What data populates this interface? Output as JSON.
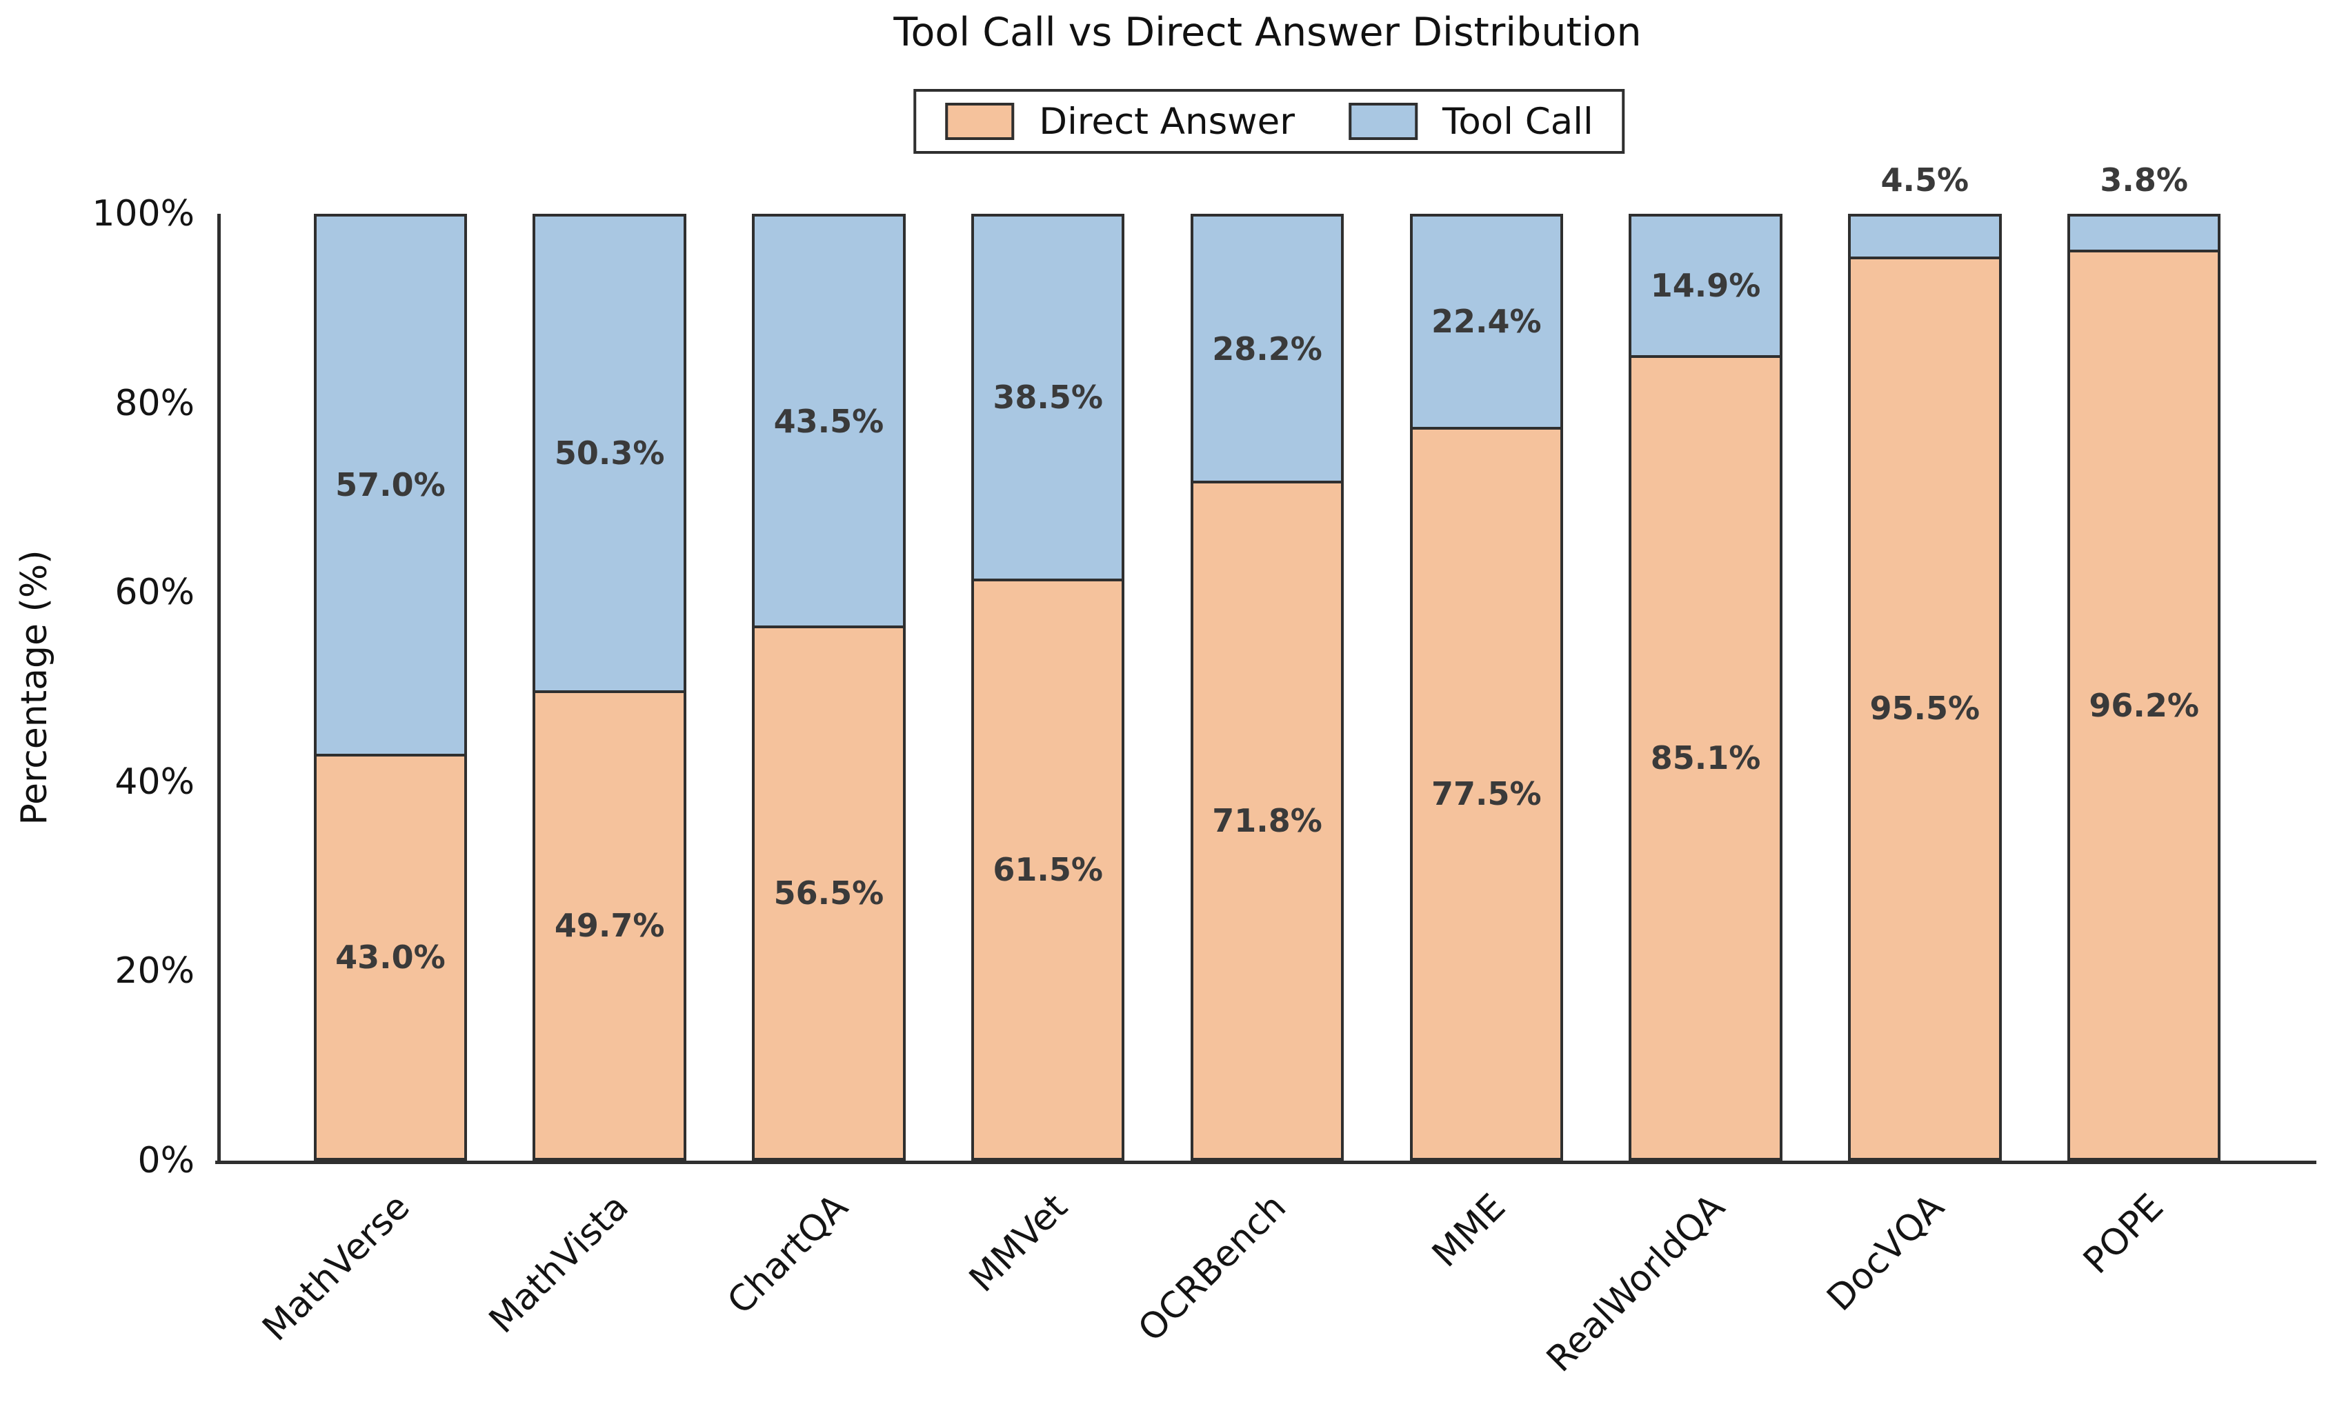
{
  "chart_data": {
    "type": "bar",
    "stacked": true,
    "title": "Tool Call vs Direct Answer Distribution",
    "ylabel": "Percentage (%)",
    "ylim": [
      0,
      100
    ],
    "grid": false,
    "yticks": [
      {
        "value": 0,
        "label": "0%"
      },
      {
        "value": 20,
        "label": "20%"
      },
      {
        "value": 40,
        "label": "40%"
      },
      {
        "value": 60,
        "label": "60%"
      },
      {
        "value": 80,
        "label": "80%"
      },
      {
        "value": 100,
        "label": "100%"
      }
    ],
    "categories": [
      "MathVerse",
      "MathVista",
      "ChartQA",
      "MMVet",
      "OCRBench",
      "MME",
      "RealWorldQA",
      "DocVQA",
      "POPE"
    ],
    "series": [
      {
        "name": "Direct Answer",
        "color": "#F5C29C",
        "values": [
          43.0,
          49.7,
          56.5,
          61.5,
          71.8,
          77.5,
          85.1,
          95.5,
          96.2
        ],
        "labels": [
          "43.0%",
          "49.7%",
          "56.5%",
          "61.5%",
          "71.8%",
          "77.5%",
          "85.1%",
          "95.5%",
          "96.2%"
        ],
        "label_position": [
          "inside",
          "inside",
          "inside",
          "inside",
          "inside",
          "inside",
          "inside",
          "inside",
          "inside"
        ]
      },
      {
        "name": "Tool Call",
        "color": "#A9C7E2",
        "values": [
          57.0,
          50.3,
          43.5,
          38.5,
          28.2,
          22.4,
          14.9,
          4.5,
          3.8
        ],
        "labels": [
          "57.0%",
          "50.3%",
          "43.5%",
          "38.5%",
          "28.2%",
          "22.4%",
          "14.9%",
          "4.5%",
          "3.8%"
        ],
        "label_position": [
          "inside",
          "inside",
          "inside",
          "inside",
          "inside",
          "inside",
          "inside",
          "above",
          "above"
        ]
      }
    ],
    "legend": {
      "position": "upper center",
      "items": [
        "Direct Answer",
        "Tool Call"
      ]
    },
    "bar_edge_color": "#2F2F2F",
    "label_color": "#3A3A3A",
    "axis_color": "#2F2F2F"
  }
}
